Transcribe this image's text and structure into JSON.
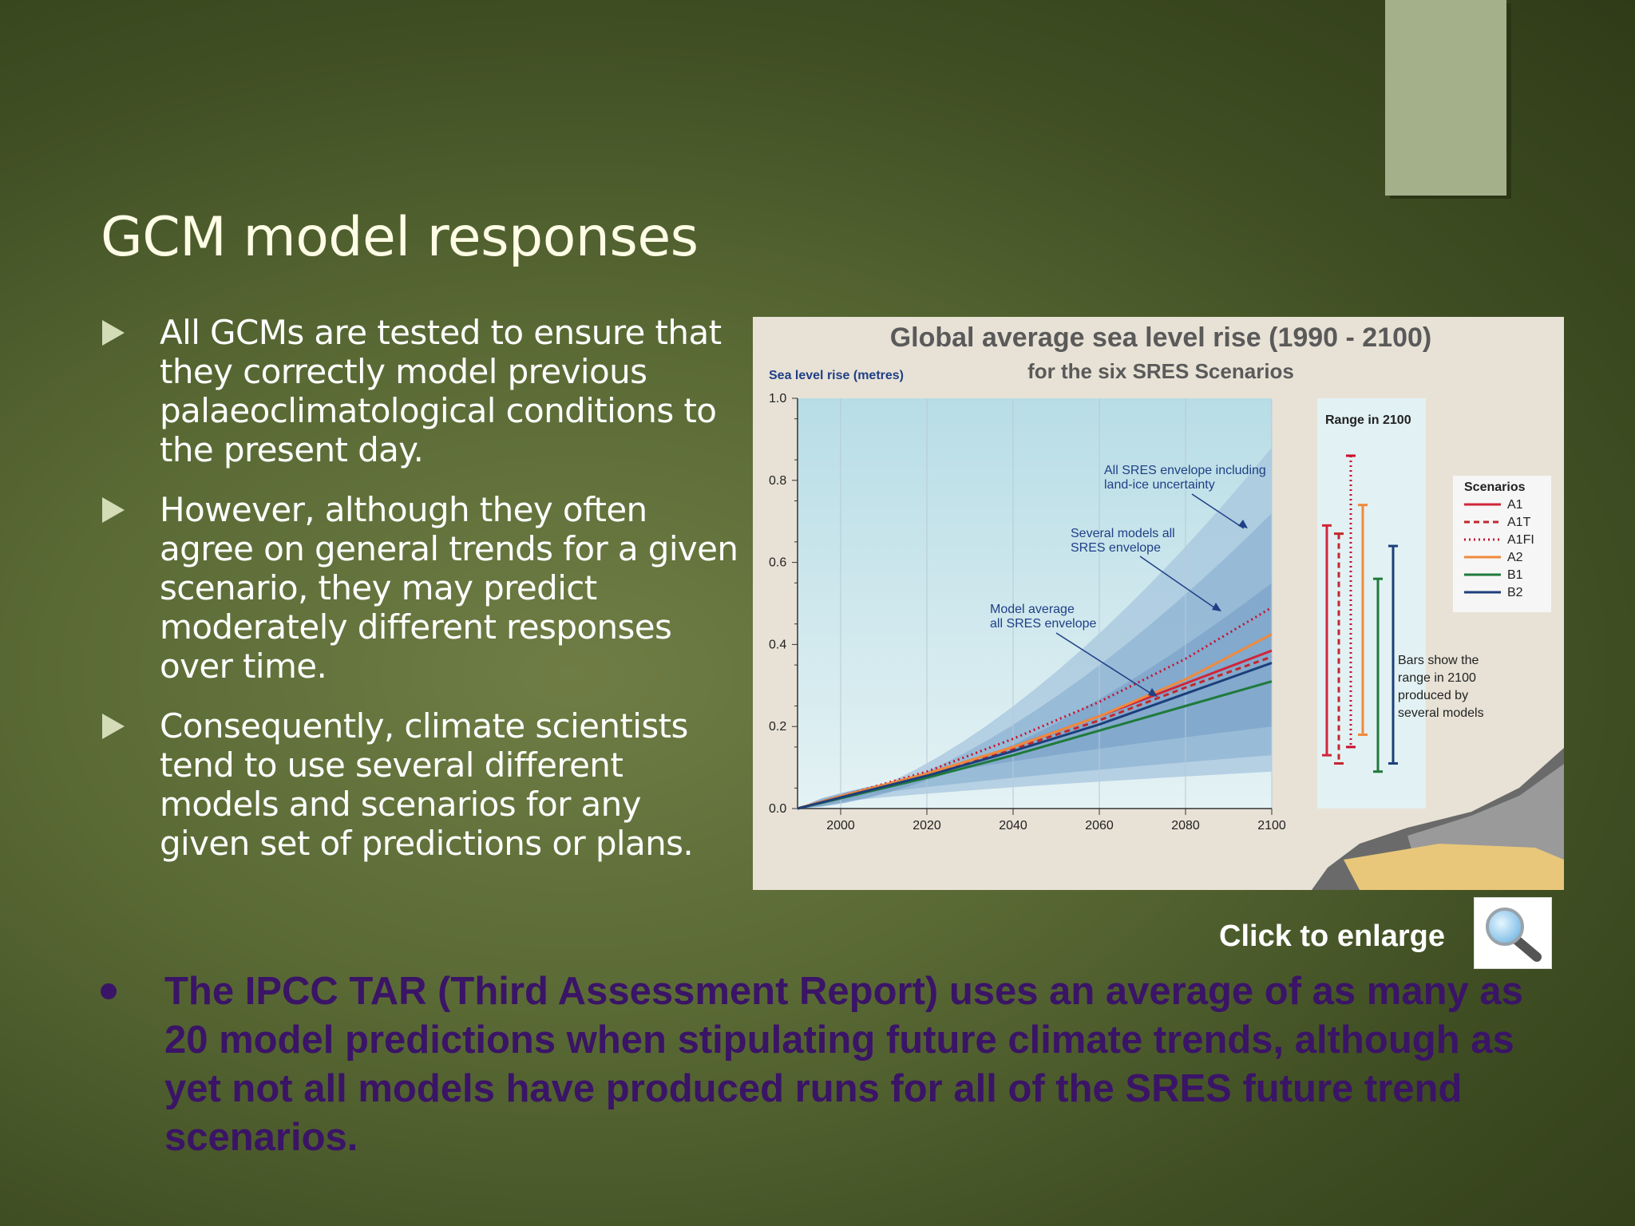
{
  "slide": {
    "title": "GCM model responses",
    "bullets": [
      {
        "text": "All GCMs are tested to ensure that they correctly model previous palaeoclimatological conditions to the present day."
      },
      {
        "text": "However, although they often agree on general trends for a given scenario, they may predict moderately different responses over time."
      },
      {
        "text": "Consequently, climate scientists tend to use several different models and scenarios for any given set of predictions or plans."
      }
    ],
    "enlarge_label": "Click to enlarge",
    "bottom_note": "The IPCC TAR (Third Assessment Report) uses an average of as many as 20 model predictions when stipulating future climate trends, although as yet not all models have produced runs for all of the SRES future trend scenarios.",
    "icons": {
      "bullet": "triangle-bullet-icon",
      "zoom": "magnifier-icon"
    },
    "colors": {
      "title": "#fffde6",
      "bullet_arrow": "#d3dcb6",
      "bottom_note": "#3a1466",
      "deco_box": "#a3b08a"
    }
  },
  "chart_data": {
    "type": "line",
    "title": "Global average sea level rise (1990 - 2100)",
    "subtitle": "for the six SRES Scenarios",
    "ylabel": "Sea level rise (metres)",
    "xlabel": "",
    "xlim": [
      1990,
      2100
    ],
    "ylim": [
      0,
      1.0
    ],
    "x_ticks": [
      "2000",
      "2020",
      "2040",
      "2060",
      "2080",
      "2100"
    ],
    "y_ticks": [
      "0.0",
      "0.2",
      "0.4",
      "0.6",
      "0.8",
      "1.0"
    ],
    "grid": true,
    "envelopes": [
      {
        "x": [
          1990,
          2100
        ],
        "lower": [
          0,
          0.09
        ],
        "upper": [
          0,
          0.88
        ]
      },
      {
        "x": [
          1990,
          2100
        ],
        "lower": [
          0,
          0.13
        ],
        "upper": [
          0,
          0.72
        ]
      },
      {
        "x": [
          1990,
          2100
        ],
        "lower": [
          0,
          0.2
        ],
        "upper": [
          0,
          0.55
        ]
      }
    ],
    "series": [
      {
        "name": "A1",
        "color": "#d0253a",
        "style": "solid",
        "x": [
          1990,
          2000,
          2020,
          2040,
          2060,
          2080,
          2100
        ],
        "values": [
          0,
          0.03,
          0.085,
          0.15,
          0.225,
          0.305,
          0.385
        ]
      },
      {
        "name": "A1T",
        "color": "#c1272d",
        "style": "dashed",
        "x": [
          1990,
          2000,
          2020,
          2040,
          2060,
          2080,
          2100
        ],
        "values": [
          0,
          0.03,
          0.085,
          0.145,
          0.215,
          0.295,
          0.37
        ]
      },
      {
        "name": "A1FI",
        "color": "#c8102e",
        "style": "dotted",
        "x": [
          1990,
          2000,
          2020,
          2040,
          2060,
          2080,
          2100
        ],
        "values": [
          0,
          0.03,
          0.09,
          0.17,
          0.26,
          0.365,
          0.49
        ]
      },
      {
        "name": "A2",
        "color": "#f08a3c",
        "style": "solid",
        "x": [
          1990,
          2000,
          2020,
          2040,
          2060,
          2080,
          2100
        ],
        "values": [
          0,
          0.03,
          0.085,
          0.15,
          0.225,
          0.315,
          0.425
        ]
      },
      {
        "name": "B1",
        "color": "#1f7a3a",
        "style": "solid",
        "x": [
          1990,
          2000,
          2020,
          2040,
          2060,
          2080,
          2100
        ],
        "values": [
          0,
          0.025,
          0.075,
          0.13,
          0.19,
          0.25,
          0.31
        ]
      },
      {
        "name": "B2",
        "color": "#1c3f7a",
        "style": "solid",
        "x": [
          1990,
          2000,
          2020,
          2040,
          2060,
          2080,
          2100
        ],
        "values": [
          0,
          0.027,
          0.08,
          0.14,
          0.205,
          0.28,
          0.355
        ]
      }
    ],
    "range_2100": {
      "label": "Range in 2100",
      "bars": [
        {
          "scenario": "A1",
          "low": 0.13,
          "high": 0.69,
          "color": "#d0253a",
          "style": "solid"
        },
        {
          "scenario": "A1T",
          "low": 0.11,
          "high": 0.67,
          "color": "#c1272d",
          "style": "dashed"
        },
        {
          "scenario": "A1FI",
          "low": 0.15,
          "high": 0.86,
          "color": "#c8102e",
          "style": "dotted"
        },
        {
          "scenario": "A2",
          "low": 0.18,
          "high": 0.74,
          "color": "#f08a3c",
          "style": "solid"
        },
        {
          "scenario": "B1",
          "low": 0.09,
          "high": 0.56,
          "color": "#1f7a3a",
          "style": "solid"
        },
        {
          "scenario": "B2",
          "low": 0.11,
          "high": 0.64,
          "color": "#1c3f7a",
          "style": "solid"
        }
      ]
    },
    "legend": {
      "title": "Scenarios",
      "placement": "right"
    },
    "annotations": [
      {
        "text": "All SRES envelope including land-ice uncertainty"
      },
      {
        "text": "Several models all SRES envelope"
      },
      {
        "text": "Model average all SRES envelope"
      },
      {
        "text": "Bars show  the range in 2100 produced by several models"
      }
    ]
  }
}
